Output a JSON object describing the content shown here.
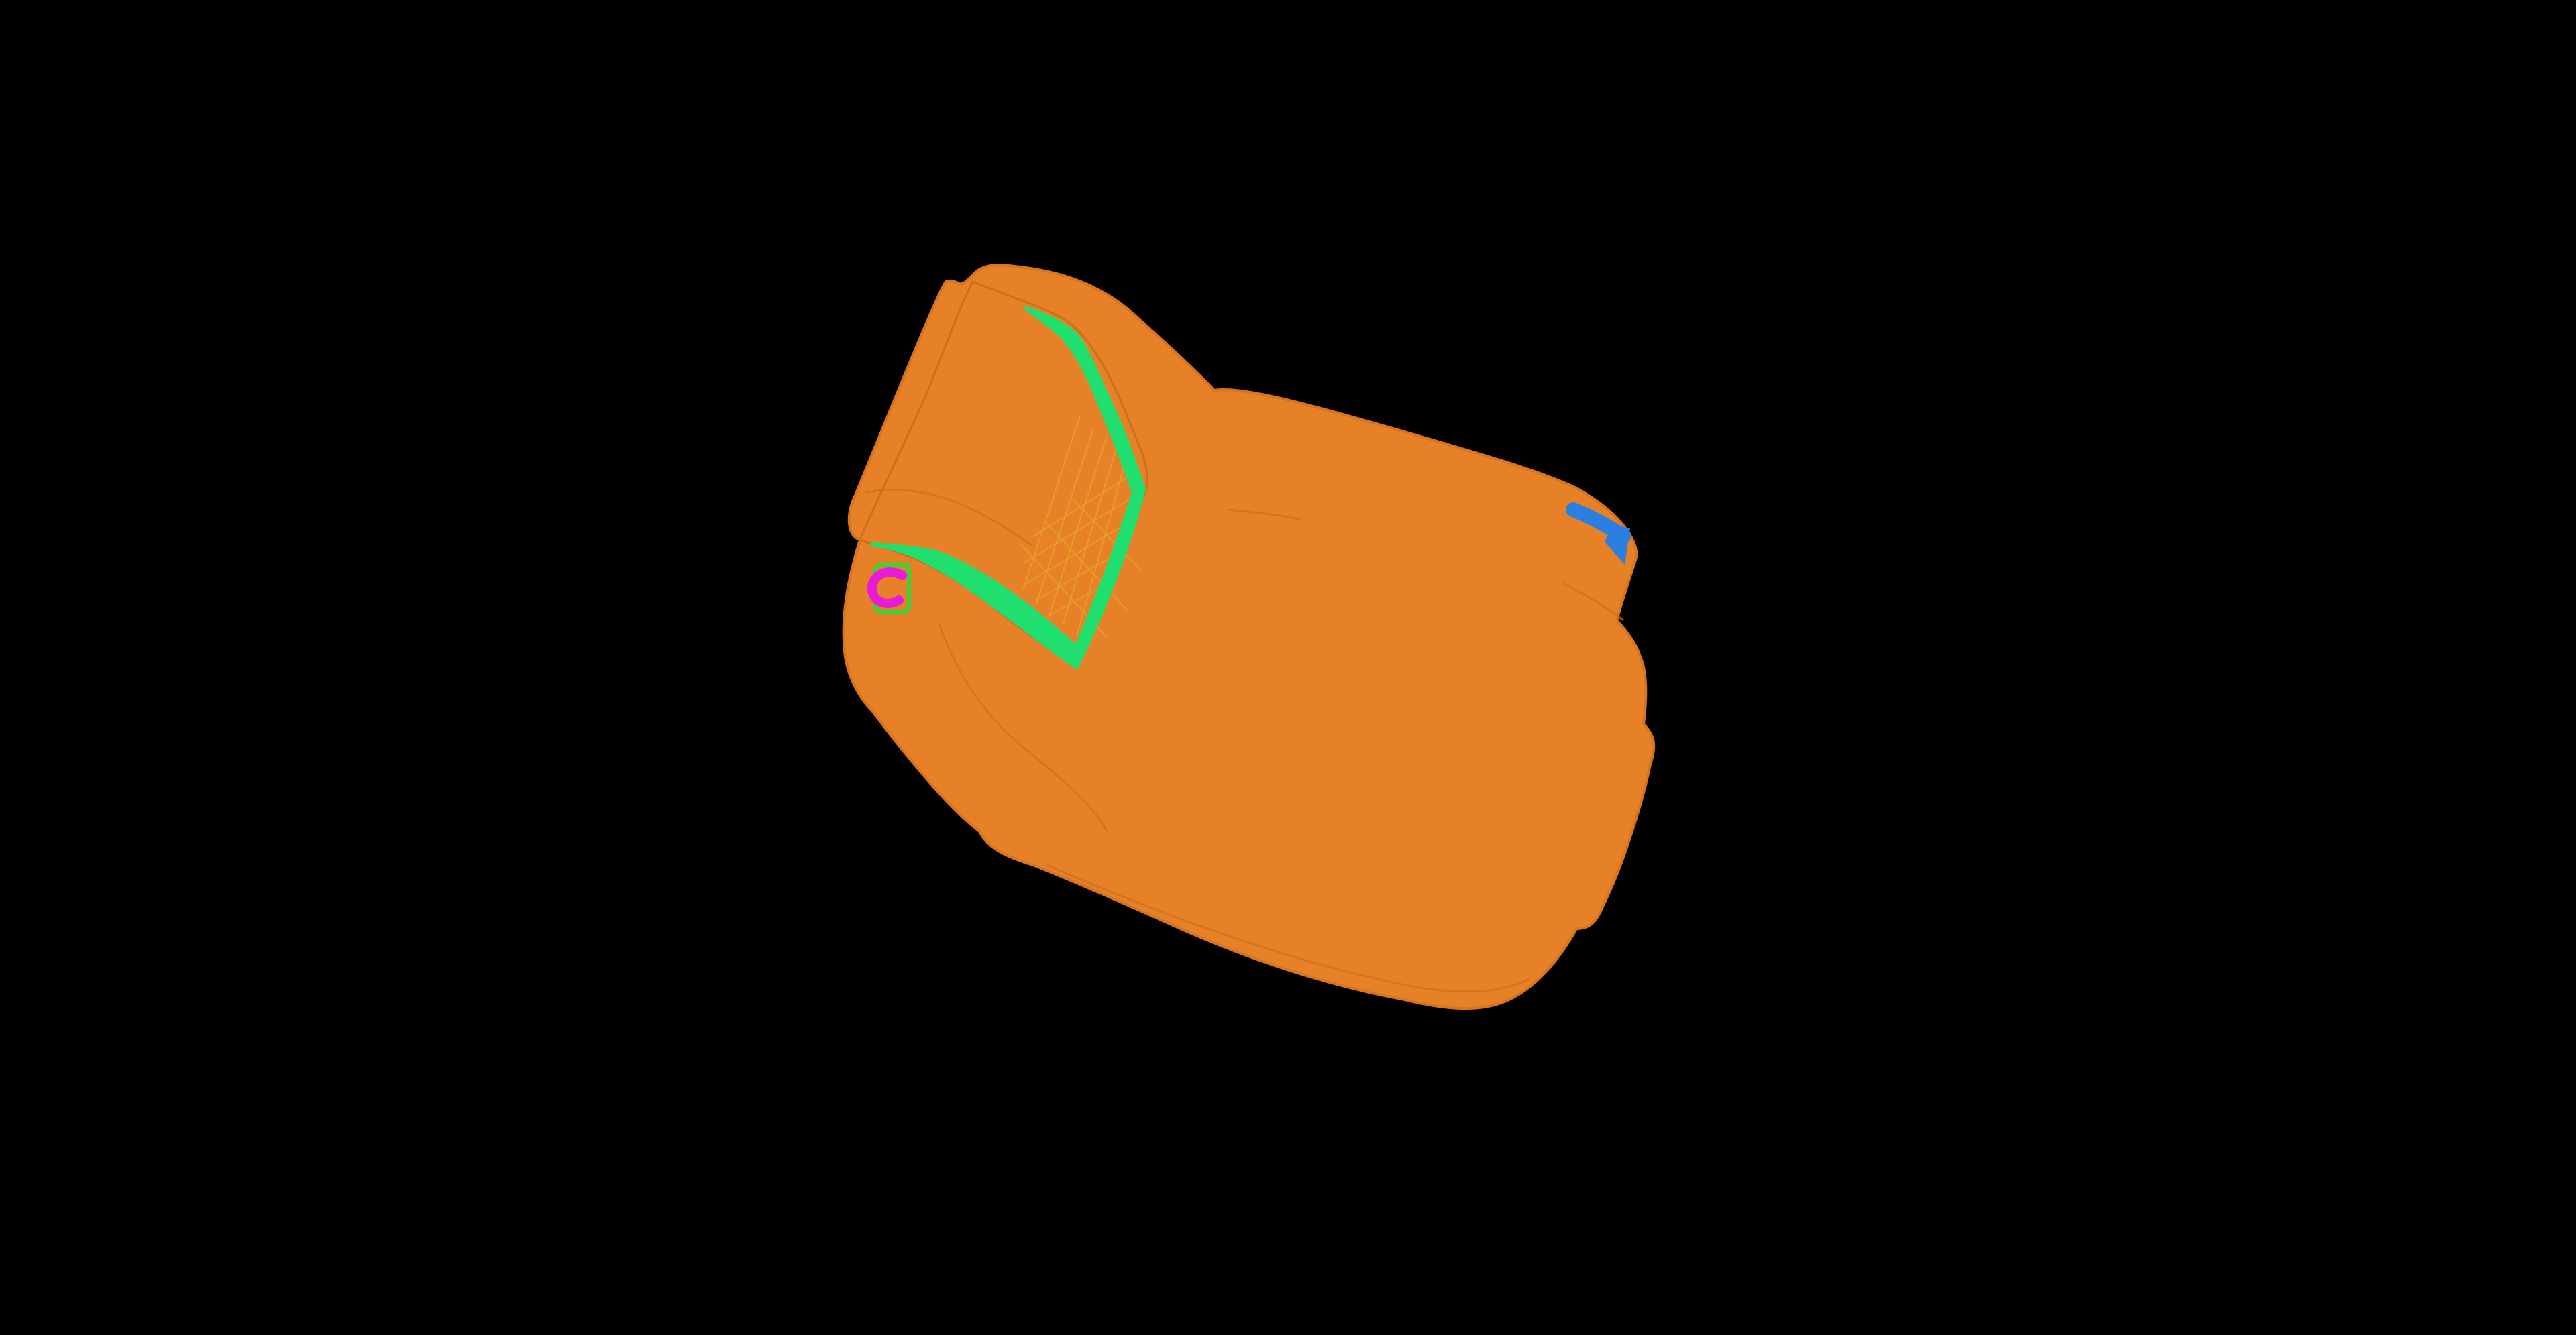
{
  "scene": {
    "description_visible_text": "",
    "colors": {
      "background": "#000000",
      "body": "#E68127",
      "body_shadow": "#D87420",
      "body_line": "#C9701F",
      "highlight_green": "#1FE06E",
      "mesh_lines": "#E7A12A",
      "marker_magenta": "#E81BD6",
      "marker_green": "#34D63A",
      "marker_blue": "#2A7FE0"
    },
    "icons": {
      "marker_left": "c-shape-marker-icon",
      "marker_right": "blue-arrow-marker-icon"
    }
  }
}
